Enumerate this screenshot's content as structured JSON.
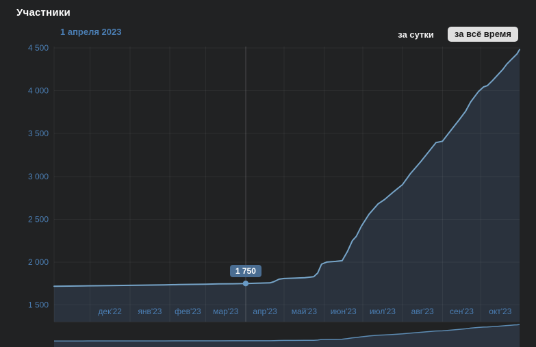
{
  "header": {
    "title": "Участники",
    "hover_date": "1 апреля 2023"
  },
  "controls": {
    "per_day_label": "за сутки",
    "all_time_label": "за всё время"
  },
  "colors": {
    "background": "#212223",
    "accent_blue": "#4b7eb3",
    "line_blue": "#76a4c8",
    "area_fill": "#2a323d",
    "mini_line_blue": "#5d8cb4",
    "mini_area_fill": "#2c3440",
    "tooltip_bg": "#4a6d92",
    "marker_blue": "#689ac6",
    "grid_line": "rgba(255,255,255,0.055)",
    "crosshair": "rgba(255,255,255,0.14)",
    "title_white": "#ffffff",
    "button_bg": "#e0e0e0",
    "button_text": "#1d1d1d"
  },
  "chart_data": {
    "type": "area",
    "title": "Участники",
    "xlabel": "",
    "ylabel": "",
    "grid": "on",
    "legend": "none",
    "x_range": [
      "2022-11-03",
      "2023-10-31"
    ],
    "ylim": [
      1300,
      4520
    ],
    "y_ticks": {
      "values": [
        1500,
        2000,
        2500,
        3000,
        3500,
        4000,
        4500
      ],
      "labels": [
        "1 500",
        "2 000",
        "2 500",
        "3 000",
        "3 500",
        "4 000",
        "4 500"
      ]
    },
    "x_ticks": [
      {
        "date": "2022-12-01",
        "label": "дек'22"
      },
      {
        "date": "2023-01-01",
        "label": "янв'23"
      },
      {
        "date": "2023-02-01",
        "label": "фев'23"
      },
      {
        "date": "2023-03-01",
        "label": "мар'23"
      },
      {
        "date": "2023-04-01",
        "label": "апр'23"
      },
      {
        "date": "2023-05-01",
        "label": "май'23"
      },
      {
        "date": "2023-06-01",
        "label": "июн'23"
      },
      {
        "date": "2023-07-01",
        "label": "июл'23"
      },
      {
        "date": "2023-08-01",
        "label": "авг'23"
      },
      {
        "date": "2023-09-01",
        "label": "сен'23"
      },
      {
        "date": "2023-10-01",
        "label": "окт'23"
      }
    ],
    "series": [
      {
        "name": "Участники",
        "points": [
          [
            "2022-11-03",
            1718
          ],
          [
            "2022-11-15",
            1720
          ],
          [
            "2022-11-25",
            1722
          ],
          [
            "2022-12-06",
            1724
          ],
          [
            "2022-12-17",
            1726
          ],
          [
            "2022-12-27",
            1728
          ],
          [
            "2023-01-07",
            1730
          ],
          [
            "2023-01-17",
            1732
          ],
          [
            "2023-01-28",
            1734
          ],
          [
            "2023-02-08",
            1737
          ],
          [
            "2023-02-18",
            1740
          ],
          [
            "2023-03-01",
            1742
          ],
          [
            "2023-03-11",
            1745
          ],
          [
            "2023-03-22",
            1747
          ],
          [
            "2023-04-01",
            1750
          ],
          [
            "2023-04-10",
            1753
          ],
          [
            "2023-04-20",
            1757
          ],
          [
            "2023-04-23",
            1772
          ],
          [
            "2023-04-27",
            1800
          ],
          [
            "2023-05-01",
            1808
          ],
          [
            "2023-05-09",
            1812
          ],
          [
            "2023-05-17",
            1818
          ],
          [
            "2023-05-24",
            1830
          ],
          [
            "2023-05-27",
            1872
          ],
          [
            "2023-05-30",
            1975
          ],
          [
            "2023-06-03",
            2000
          ],
          [
            "2023-06-10",
            2008
          ],
          [
            "2023-06-15",
            2016
          ],
          [
            "2023-06-19",
            2120
          ],
          [
            "2023-06-23",
            2250
          ],
          [
            "2023-06-26",
            2300
          ],
          [
            "2023-06-30",
            2420
          ],
          [
            "2023-07-06",
            2560
          ],
          [
            "2023-07-13",
            2680
          ],
          [
            "2023-07-18",
            2730
          ],
          [
            "2023-07-25",
            2820
          ],
          [
            "2023-08-01",
            2905
          ],
          [
            "2023-08-07",
            3030
          ],
          [
            "2023-08-15",
            3170
          ],
          [
            "2023-08-23",
            3320
          ],
          [
            "2023-08-27",
            3395
          ],
          [
            "2023-09-01",
            3410
          ],
          [
            "2023-09-08",
            3545
          ],
          [
            "2023-09-14",
            3660
          ],
          [
            "2023-09-19",
            3760
          ],
          [
            "2023-09-23",
            3870
          ],
          [
            "2023-09-29",
            3990
          ],
          [
            "2023-10-03",
            4045
          ],
          [
            "2023-10-06",
            4060
          ],
          [
            "2023-10-10",
            4120
          ],
          [
            "2023-10-14",
            4185
          ],
          [
            "2023-10-18",
            4250
          ],
          [
            "2023-10-21",
            4310
          ],
          [
            "2023-10-24",
            4355
          ],
          [
            "2023-10-27",
            4400
          ],
          [
            "2023-10-29",
            4430
          ],
          [
            "2023-10-31",
            4480
          ]
        ]
      }
    ],
    "selected_point": {
      "date": "2023-04-01",
      "value": 1750,
      "label": "1 750",
      "date_label": "1 апреля 2023"
    }
  }
}
